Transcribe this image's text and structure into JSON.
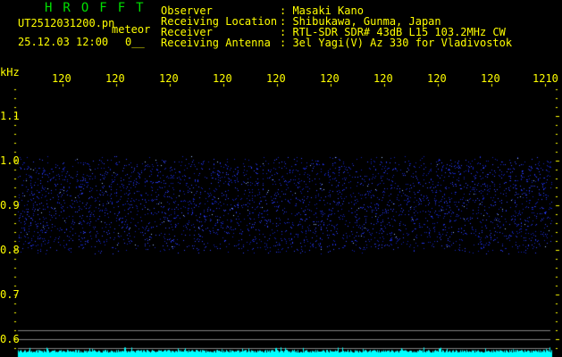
{
  "header": {
    "title": "HROFFT",
    "filename": "UT2512031200.pn",
    "mode": "meteor",
    "datetime": "25.12.03 12:00",
    "counter": "0__",
    "info": [
      {
        "label": "Observer",
        "value": ": Masaki Kano"
      },
      {
        "label": "Receiving Location",
        "value": ": Shibukawa, Gunma, Japan"
      },
      {
        "label": "Receiver",
        "value": ": RTL-SDR SDR# 43dB L15 103.2MHz CW"
      },
      {
        "label": "Receiving Antenna",
        "value": ": 3el Yagi(V) Az 330 for Vladivostok"
      }
    ]
  },
  "spectrogram": {
    "y_unit": "kHz",
    "y_ticks": [
      "1.1",
      "1.0",
      "0.9",
      "0.8",
      "0.7",
      "0.6"
    ],
    "x_ticks": [
      "120",
      "120",
      "120",
      "120",
      "120",
      "120",
      "120",
      "120",
      "120",
      "1210"
    ],
    "noise_band_khz": [
      0.8,
      1.0
    ],
    "colors": {
      "noise": "#2030ff",
      "axis": "#ffff00",
      "title": "#00e000",
      "level": "#00ffff",
      "lines": "#808080"
    }
  }
}
